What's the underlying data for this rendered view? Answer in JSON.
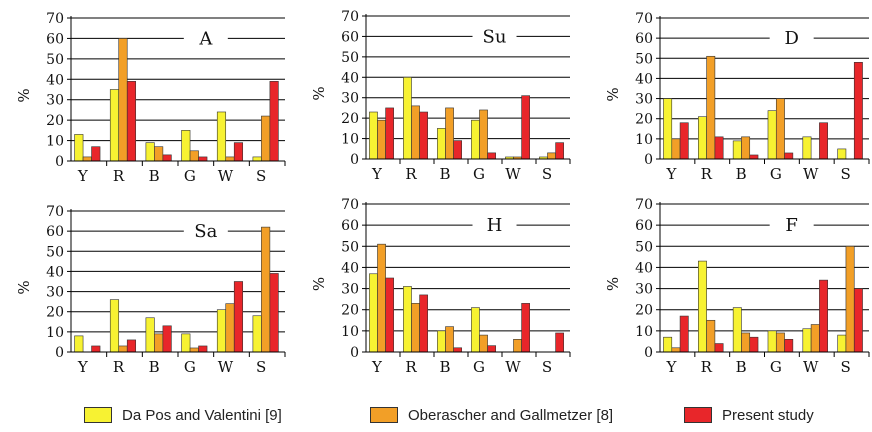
{
  "chart_data": [
    {
      "type": "bar",
      "title": "A",
      "ylabel": "%",
      "ylim": [
        0,
        70
      ],
      "yticks": [
        "0",
        "10",
        "20",
        "30",
        "40",
        "50",
        "60",
        "70"
      ],
      "categories": [
        "Y",
        "R",
        "B",
        "G",
        "W",
        "S"
      ],
      "series": [
        {
          "name": "Da Pos and Valentini [9]",
          "values": [
            13,
            35,
            9,
            15,
            24,
            2
          ]
        },
        {
          "name": "Oberascher and Gallmetzer [8]",
          "values": [
            2,
            60,
            7,
            5,
            2,
            22
          ]
        },
        {
          "name": "Present study",
          "values": [
            7,
            39,
            3,
            2,
            9,
            39
          ]
        }
      ]
    },
    {
      "type": "bar",
      "title": "Su",
      "ylabel": "%",
      "ylim": [
        0,
        70
      ],
      "yticks": [
        "0",
        "10",
        "20",
        "30",
        "40",
        "50",
        "60",
        "70"
      ],
      "categories": [
        "Y",
        "R",
        "B",
        "G",
        "W",
        "S"
      ],
      "series": [
        {
          "name": "Da Pos and Valentini [9]",
          "values": [
            23,
            40,
            15,
            19,
            1,
            1
          ]
        },
        {
          "name": "Oberascher and Gallmetzer [8]",
          "values": [
            19,
            26,
            25,
            24,
            1,
            3
          ]
        },
        {
          "name": "Present study",
          "values": [
            25,
            23,
            9,
            3,
            31,
            8
          ]
        }
      ]
    },
    {
      "type": "bar",
      "title": "D",
      "ylabel": "%",
      "ylim": [
        0,
        70
      ],
      "yticks": [
        "0",
        "10",
        "20",
        "30",
        "40",
        "50",
        "60",
        "70"
      ],
      "categories": [
        "Y",
        "R",
        "B",
        "G",
        "W",
        "S"
      ],
      "series": [
        {
          "name": "Da Pos and Valentini [9]",
          "values": [
            30,
            21,
            9,
            24,
            11,
            5
          ]
        },
        {
          "name": "Oberascher and Gallmetzer [8]",
          "values": [
            10,
            51,
            11,
            30,
            0,
            0
          ]
        },
        {
          "name": "Present study",
          "values": [
            18,
            11,
            2,
            3,
            18,
            48
          ]
        }
      ]
    },
    {
      "type": "bar",
      "title": "Sa",
      "ylabel": "%",
      "ylim": [
        0,
        70
      ],
      "yticks": [
        "0",
        "10",
        "20",
        "30",
        "40",
        "50",
        "60",
        "70"
      ],
      "categories": [
        "Y",
        "R",
        "B",
        "G",
        "W",
        "S"
      ],
      "series": [
        {
          "name": "Da Pos and Valentini [9]",
          "values": [
            8,
            26,
            17,
            9,
            21,
            18
          ]
        },
        {
          "name": "Oberascher and Gallmetzer [8]",
          "values": [
            0,
            3,
            9,
            2,
            24,
            62
          ]
        },
        {
          "name": "Present study",
          "values": [
            3,
            6,
            13,
            3,
            35,
            39
          ]
        }
      ]
    },
    {
      "type": "bar",
      "title": "H",
      "ylabel": "%",
      "ylim": [
        0,
        70
      ],
      "yticks": [
        "0",
        "10",
        "20",
        "30",
        "40",
        "50",
        "60",
        "70"
      ],
      "categories": [
        "Y",
        "R",
        "B",
        "G",
        "W",
        "S"
      ],
      "series": [
        {
          "name": "Da Pos and Valentini [9]",
          "values": [
            37,
            31,
            10,
            21,
            0,
            0
          ]
        },
        {
          "name": "Oberascher and Gallmetzer [8]",
          "values": [
            51,
            23,
            12,
            8,
            6,
            0
          ]
        },
        {
          "name": "Present study",
          "values": [
            35,
            27,
            2,
            3,
            23,
            9
          ]
        }
      ]
    },
    {
      "type": "bar",
      "title": "F",
      "ylabel": "%",
      "ylim": [
        0,
        70
      ],
      "yticks": [
        "0",
        "10",
        "20",
        "30",
        "40",
        "50",
        "60",
        "70"
      ],
      "categories": [
        "Y",
        "R",
        "B",
        "G",
        "W",
        "S"
      ],
      "series": [
        {
          "name": "Da Pos and Valentini [9]",
          "values": [
            7,
            43,
            21,
            10,
            11,
            8
          ]
        },
        {
          "name": "Oberascher and Gallmetzer [8]",
          "values": [
            2,
            15,
            9,
            9,
            13,
            50
          ]
        },
        {
          "name": "Present study",
          "values": [
            17,
            4,
            7,
            6,
            34,
            30
          ]
        }
      ]
    }
  ],
  "legend": [
    {
      "label": "Da Pos and Valentini [9]",
      "color": "#f7f232"
    },
    {
      "label": "Oberascher and Gallmetzer [8]",
      "color": "#f29f27"
    },
    {
      "label": "Present study",
      "color": "#e8262a"
    }
  ]
}
